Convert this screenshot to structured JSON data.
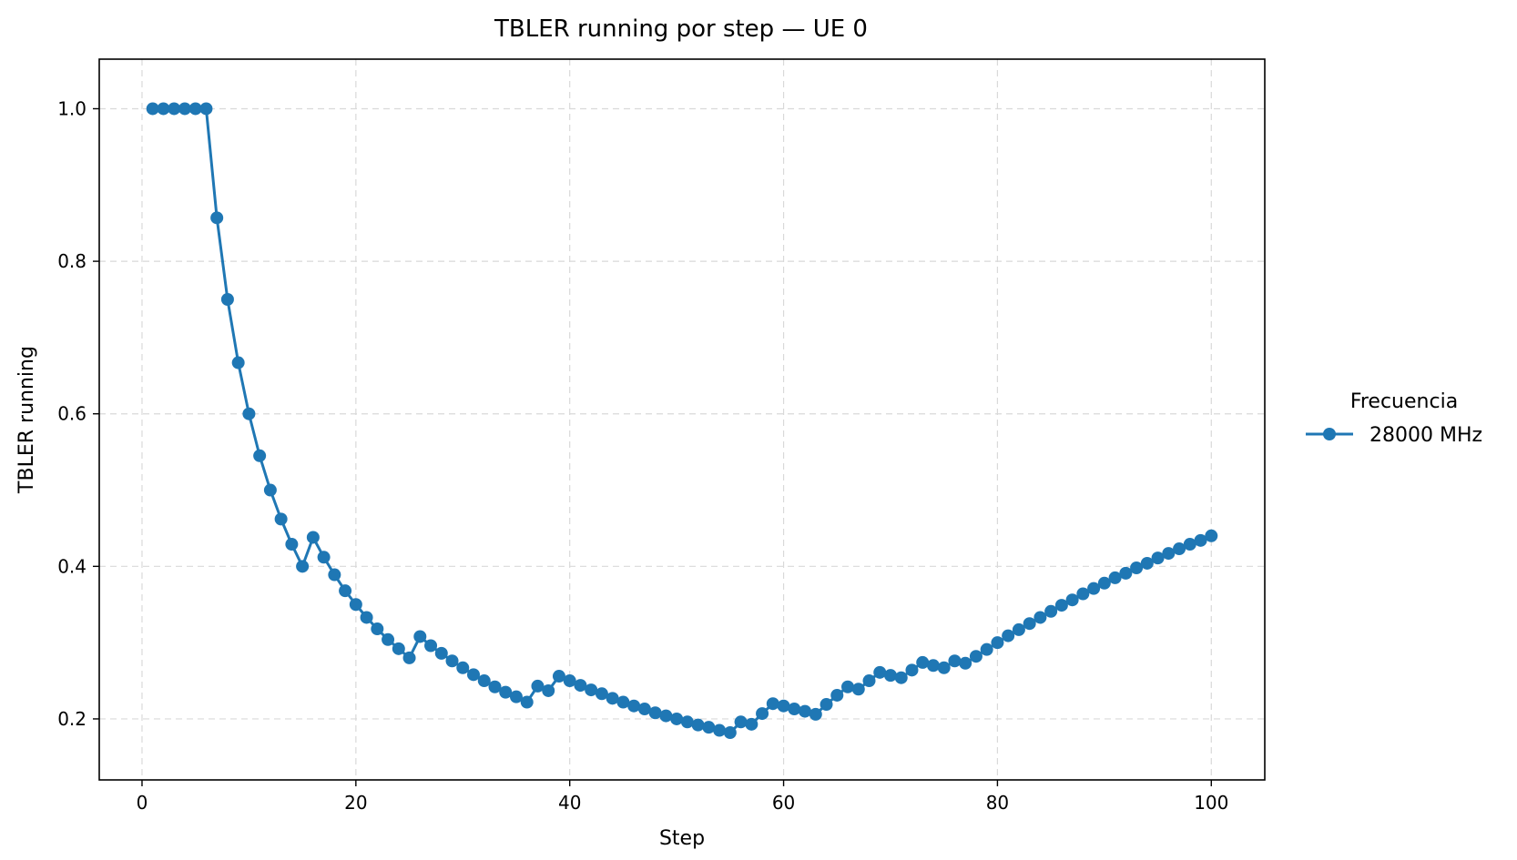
{
  "chart_data": {
    "type": "line",
    "title": "TBLER running por step — UE 0",
    "xlabel": "Step",
    "ylabel": "TBLER running",
    "xlim": [
      -4,
      105
    ],
    "ylim": [
      0.12,
      1.065
    ],
    "xticks": [
      0,
      20,
      40,
      60,
      80,
      100
    ],
    "xtick_labels": [
      "0",
      "20",
      "40",
      "60",
      "80",
      "100"
    ],
    "yticks": [
      0.2,
      0.4,
      0.6,
      0.8,
      1.0
    ],
    "ytick_labels": [
      "0.2",
      "0.4",
      "0.6",
      "0.8",
      "1.0"
    ],
    "grid": true,
    "legend": {
      "title": "Frecuencia",
      "placement": "right-outside"
    },
    "series": [
      {
        "name": "28000 MHz",
        "color": "#1f77b4",
        "marker": "circle",
        "x": [
          1,
          2,
          3,
          4,
          5,
          6,
          7,
          8,
          9,
          10,
          11,
          12,
          13,
          14,
          15,
          16,
          17,
          18,
          19,
          20,
          21,
          22,
          23,
          24,
          25,
          26,
          27,
          28,
          29,
          30,
          31,
          32,
          33,
          34,
          35,
          36,
          37,
          38,
          39,
          40,
          41,
          42,
          43,
          44,
          45,
          46,
          47,
          48,
          49,
          50,
          51,
          52,
          53,
          54,
          55,
          56,
          57,
          58,
          59,
          60,
          61,
          62,
          63,
          64,
          65,
          66,
          67,
          68,
          69,
          70,
          71,
          72,
          73,
          74,
          75,
          76,
          77,
          78,
          79,
          80,
          81,
          82,
          83,
          84,
          85,
          86,
          87,
          88,
          89,
          90,
          91,
          92,
          93,
          94,
          95,
          96,
          97,
          98,
          99,
          100
        ],
        "y": [
          1.0,
          1.0,
          1.0,
          1.0,
          1.0,
          1.0,
          0.857,
          0.75,
          0.667,
          0.6,
          0.545,
          0.5,
          0.462,
          0.429,
          0.4,
          0.438,
          0.412,
          0.389,
          0.368,
          0.35,
          0.333,
          0.318,
          0.304,
          0.292,
          0.28,
          0.308,
          0.296,
          0.286,
          0.276,
          0.267,
          0.258,
          0.25,
          0.242,
          0.235,
          0.229,
          0.222,
          0.243,
          0.237,
          0.256,
          0.25,
          0.244,
          0.238,
          0.233,
          0.227,
          0.222,
          0.217,
          0.213,
          0.208,
          0.204,
          0.2,
          0.196,
          0.192,
          0.189,
          0.185,
          0.182,
          0.196,
          0.193,
          0.207,
          0.22,
          0.217,
          0.213,
          0.21,
          0.206,
          0.219,
          0.231,
          0.242,
          0.239,
          0.25,
          0.261,
          0.257,
          0.254,
          0.264,
          0.274,
          0.27,
          0.267,
          0.276,
          0.273,
          0.282,
          0.291,
          0.3,
          0.309,
          0.317,
          0.325,
          0.333,
          0.341,
          0.349,
          0.356,
          0.364,
          0.371,
          0.378,
          0.385,
          0.391,
          0.398,
          0.404,
          0.411,
          0.417,
          0.423,
          0.429,
          0.434,
          0.44
        ]
      }
    ]
  }
}
